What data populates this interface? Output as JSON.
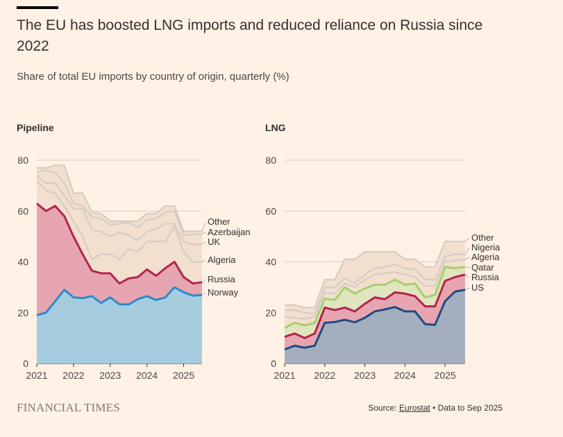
{
  "header": {
    "title": "The EU has boosted LNG imports and reduced reliance on Russia since 2022",
    "subtitle": "Share of total EU imports by country of origin, quarterly (%)"
  },
  "footer": {
    "brand": "FINANCIAL TIMES",
    "source_prefix": "Source: ",
    "source_link": "Eurostat",
    "source_suffix": " • Data to Sep 2025"
  },
  "colors": {
    "background": "#FFF1E5",
    "grid": "#CCC1B7",
    "other_lines": "#D6CCC4",
    "other_fill": "#F2DFCE"
  },
  "chart_data": [
    {
      "type": "area",
      "title": "Pipeline",
      "stacked": true,
      "x": [
        2021.0,
        2021.25,
        2021.5,
        2021.75,
        2022.0,
        2022.25,
        2022.5,
        2022.75,
        2023.0,
        2023.25,
        2023.5,
        2023.75,
        2024.0,
        2024.25,
        2024.5,
        2024.75,
        2025.0,
        2025.25,
        2025.5
      ],
      "xticks": [
        "2021",
        "2022",
        "2023",
        "2024",
        "2025"
      ],
      "yticks": [
        "0",
        "20",
        "40",
        "60",
        "80"
      ],
      "ylim": [
        0,
        80
      ],
      "series": [
        {
          "name": "Norway",
          "color": "#2E8AC9",
          "fill": "#A6CCE0",
          "emphasis": true,
          "cumulative": [
            19,
            20,
            24.5,
            29,
            26,
            25.7,
            26.5,
            23.8,
            26,
            23.3,
            23.2,
            25.3,
            26.5,
            25,
            26,
            30,
            28,
            26.7,
            27
          ]
        },
        {
          "name": "Russia",
          "color": "#B3234E",
          "fill": "#E6A5B0",
          "emphasis": true,
          "cumulative": [
            63,
            60,
            62,
            58,
            50,
            43,
            36.5,
            35.5,
            35.5,
            31.5,
            33.5,
            34,
            37,
            34.5,
            37.5,
            40,
            34,
            31.5,
            32
          ]
        },
        {
          "name": "Algeria",
          "color": "#D6CCC4",
          "fill": "#F2DFCE",
          "emphasis": false,
          "cumulative": [
            72,
            68,
            67,
            62,
            56,
            50,
            41,
            43,
            43,
            41,
            45,
            44,
            48,
            48,
            48,
            54,
            44,
            40,
            40
          ]
        },
        {
          "name": "UK",
          "color": "#D6CCC4",
          "fill": "#F2DFCE",
          "emphasis": false,
          "cumulative": [
            74,
            71,
            71,
            66,
            61,
            61,
            52.5,
            52,
            50,
            51.5,
            50.5,
            48.5,
            52,
            53,
            55,
            55,
            48,
            46.8,
            47
          ]
        },
        {
          "name": "Azerbaijan",
          "color": "#D6CCC4",
          "fill": "#F2DFCE",
          "emphasis": false,
          "cumulative": [
            75.5,
            76,
            75,
            71,
            63,
            62,
            57.5,
            57,
            54.5,
            55,
            55.5,
            53.5,
            56.5,
            57,
            59.5,
            60,
            50.5,
            50.7,
            51
          ]
        },
        {
          "name": "Other",
          "color": "#D6CCC4",
          "fill": "#F2DFCE",
          "emphasis": false,
          "cumulative": [
            77,
            77,
            78,
            78,
            67,
            67,
            59.5,
            59,
            56,
            56,
            56,
            56,
            59,
            59,
            62,
            62,
            52,
            52,
            52
          ]
        }
      ]
    },
    {
      "type": "area",
      "title": "LNG",
      "stacked": true,
      "x": [
        2021.0,
        2021.25,
        2021.5,
        2021.75,
        2022.0,
        2022.25,
        2022.5,
        2022.75,
        2023.0,
        2023.25,
        2023.5,
        2023.75,
        2024.0,
        2024.25,
        2024.5,
        2024.75,
        2025.0,
        2025.25,
        2025.5
      ],
      "xticks": [
        "2021",
        "2022",
        "2023",
        "2024",
        "2025"
      ],
      "yticks": [
        "0",
        "20",
        "40",
        "60",
        "80"
      ],
      "ylim": [
        0,
        80
      ],
      "series": [
        {
          "name": "US",
          "color": "#1E4A85",
          "fill": "#A3AFBE",
          "emphasis": true,
          "cumulative": [
            5.5,
            7,
            6.2,
            7,
            16,
            16.3,
            17.2,
            16.2,
            18,
            20.5,
            21.3,
            22.2,
            20.5,
            20.5,
            15.5,
            15.2,
            24.5,
            28.3,
            29
          ]
        },
        {
          "name": "Russia",
          "color": "#B3234E",
          "fill": "#E6A5B0",
          "emphasis": true,
          "cumulative": [
            10.5,
            11.8,
            10,
            11.8,
            22,
            21,
            22,
            20.5,
            23.5,
            26,
            25.3,
            28,
            27.5,
            26.5,
            22.5,
            22.5,
            32.5,
            34,
            35
          ]
        },
        {
          "name": "Qatar",
          "color": "#A6CF6E",
          "fill": "#E0E5BE",
          "emphasis": true,
          "cumulative": [
            14,
            16,
            15,
            16,
            25.5,
            25,
            30,
            27.5,
            29.5,
            31,
            31,
            33,
            31,
            31.5,
            26,
            27,
            38,
            37.5,
            38
          ]
        },
        {
          "name": "Algeria",
          "color": "#D6CCC4",
          "fill": "#F2DFCE",
          "emphasis": false,
          "cumulative": [
            18.5,
            18,
            17.5,
            18.5,
            28,
            27.5,
            31.5,
            30,
            33,
            35,
            35.5,
            36,
            35,
            34,
            30.5,
            30.5,
            40,
            40.5,
            41
          ]
        },
        {
          "name": "Nigeria",
          "color": "#D6CCC4",
          "fill": "#F2DFCE",
          "emphasis": false,
          "cumulative": [
            21,
            21,
            20,
            19.5,
            30,
            30,
            33.5,
            31.5,
            35,
            37.5,
            38,
            39,
            37.5,
            37,
            33,
            33,
            42,
            43,
            43
          ]
        },
        {
          "name": "Other",
          "color": "#D6CCC4",
          "fill": "#F2DFCE",
          "emphasis": false,
          "cumulative": [
            23,
            23,
            22,
            22,
            33,
            33,
            41,
            41,
            44,
            44,
            44,
            44,
            41,
            41,
            38,
            38,
            48,
            48,
            48
          ]
        }
      ]
    }
  ]
}
